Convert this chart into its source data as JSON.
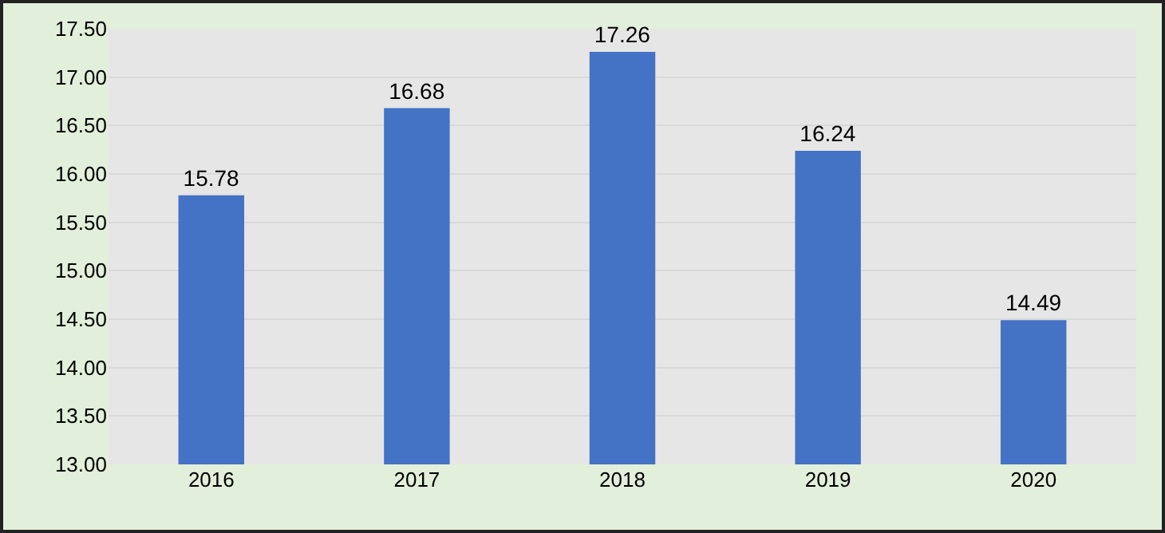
{
  "chart_data": {
    "type": "bar",
    "categories": [
      "2016",
      "2017",
      "2018",
      "2019",
      "2020"
    ],
    "values": [
      15.78,
      16.68,
      17.26,
      16.24,
      14.49
    ],
    "color": "#4472c4",
    "ylim": [
      13,
      17.5
    ],
    "yticks": [
      {
        "value": 13,
        "label": "13.00"
      },
      {
        "value": 13.5,
        "label": "13.50"
      },
      {
        "value": 14,
        "label": "14.00"
      },
      {
        "value": 14.5,
        "label": "14.50"
      },
      {
        "value": 15,
        "label": "15.00"
      },
      {
        "value": 15.5,
        "label": "15.50"
      },
      {
        "value": 16,
        "label": "16.00"
      },
      {
        "value": 16.5,
        "label": "16.50"
      },
      {
        "value": 17,
        "label": "17.00"
      },
      {
        "value": 17.5,
        "label": "17.50"
      }
    ],
    "grid": "y",
    "data_labels": true
  }
}
